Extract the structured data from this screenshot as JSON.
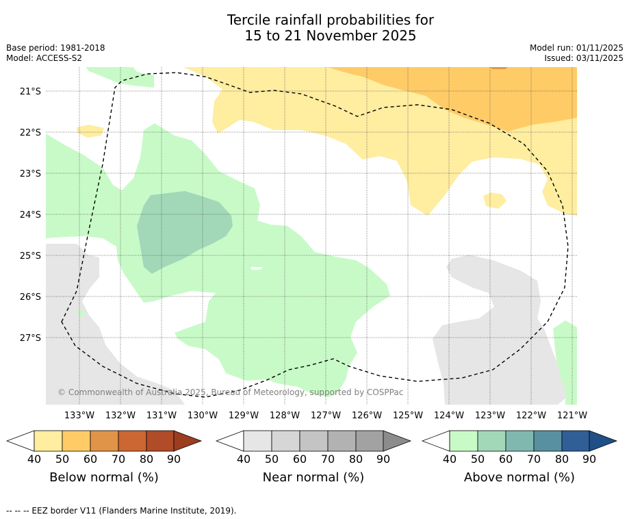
{
  "title": {
    "line1": "Tercile rainfall probabilities for",
    "line2": "15 to 21 November 2025"
  },
  "meta_left": {
    "base_period": "Base period: 1981-2018",
    "model": "Model: ACCESS-S2"
  },
  "meta_right": {
    "model_run": "Model run: 01/11/2025",
    "issued": "Issued: 03/11/2025"
  },
  "axes": {
    "lat_labels": [
      "21°S",
      "22°S",
      "23°S",
      "24°S",
      "25°S",
      "26°S",
      "27°S"
    ],
    "lon_labels": [
      "133°W",
      "132°W",
      "131°W",
      "130°W",
      "129°W",
      "128°W",
      "127°W",
      "126°W",
      "125°W",
      "124°W",
      "123°W",
      "122°W",
      "121°W"
    ]
  },
  "copyright": "© Commonwealth of Australia 2025, Bureau of Meteorology, supported by COSPPac",
  "colorbars": [
    {
      "title": "Below normal (%)",
      "ticks": [
        "40",
        "50",
        "60",
        "70",
        "80",
        "90"
      ],
      "colors": [
        "#ffeda0",
        "#fecb66",
        "#e09448",
        "#cc6633",
        "#b04c28",
        "#9c3d20"
      ]
    },
    {
      "title": "Near normal (%)",
      "ticks": [
        "40",
        "50",
        "60",
        "70",
        "80",
        "90"
      ],
      "colors": [
        "#e6e6e6",
        "#d6d6d6",
        "#c4c4c4",
        "#b2b2b2",
        "#a2a2a2",
        "#8c8c8c"
      ]
    },
    {
      "title": "Above normal (%)",
      "ticks": [
        "40",
        "50",
        "60",
        "70",
        "80",
        "90"
      ],
      "colors": [
        "#c8fac8",
        "#a2d8b8",
        "#80b8b0",
        "#5890a0",
        "#305f98",
        "#1f4f86"
      ]
    }
  ],
  "footnote": "-- -- -- EEZ border V11 (Flanders Marine Institute, 2019)."
}
